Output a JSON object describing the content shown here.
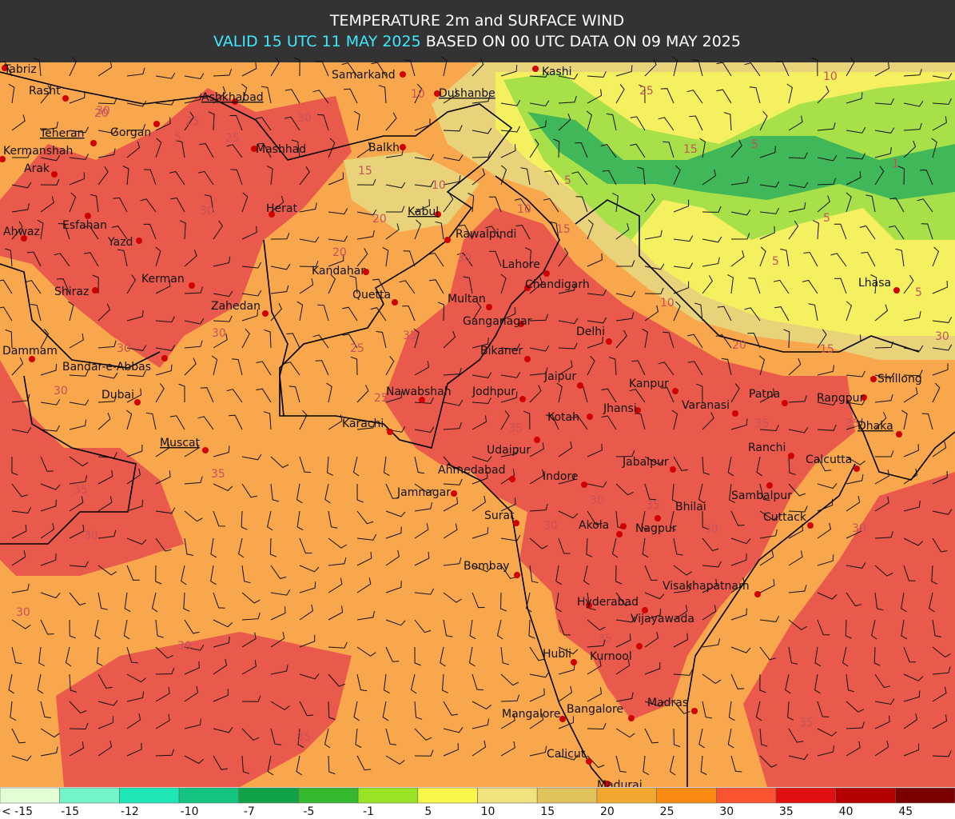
{
  "header": {
    "title": "TEMPERATURE 2m and SURFACE WIND",
    "valid": "VALID 15 UTC 11 MAY 2025",
    "based": "BASED ON 00 UTC DATA ON 09 MAY 2025"
  },
  "map": {
    "cities": [
      "Tabriz",
      "Rasht",
      "Teheran",
      "Gorgan",
      "Kermanshah",
      "Arak",
      "Ashkhabad",
      "Mashhad",
      "Samarkand",
      "Dushanbe",
      "Kashi",
      "Balkh",
      "Herat",
      "Kabul",
      "Rawalpindi",
      "Esfahan",
      "Yazd",
      "Ahwaz",
      "Kerman",
      "Shiraz",
      "Zahedan",
      "Kandahar",
      "Quetta",
      "Lahore",
      "Chandigarh",
      "Multan",
      "Ganganagar",
      "Delhi",
      "Lhasa",
      "Bikaner",
      "Dammam",
      "Bandar-e-Abbas",
      "Dubai",
      "Jaipur",
      "Kanpur",
      "Patna",
      "Shillong",
      "Rangpur",
      "Nawabshah",
      "Jodhpur",
      "Varanasi",
      "Jhansi",
      "Kotah",
      "Muscat",
      "Karachi",
      "Dhaka",
      "Udaipur",
      "Ranchi",
      "Calcutta",
      "Jabalpur",
      "Ahmedabad",
      "Indore",
      "Jamnagar",
      "Sambalpur",
      "Bhilai",
      "Cuttack",
      "Surat",
      "Akola",
      "Nagpur",
      "Bombay",
      "Visakhapatnam",
      "Hyderabad",
      "Vijayawada",
      "Hubli",
      "Kurnool",
      "Madras",
      "Mangalore",
      "Bangalore",
      "Calicut",
      "Madurai"
    ],
    "contour_labels": [
      30,
      20,
      25,
      30,
      25,
      15,
      10,
      10,
      25,
      5,
      10,
      15,
      5,
      1,
      5,
      5,
      25,
      20,
      15,
      5,
      10,
      15,
      20,
      5,
      30,
      30,
      35,
      35,
      35,
      35,
      30,
      35,
      30,
      35,
      25,
      35,
      30,
      30,
      30,
      35,
      35,
      35,
      30,
      30,
      30,
      30,
      30,
      20,
      30,
      10
    ]
  },
  "legend": {
    "colors": [
      "#e4ffd6",
      "#72f5c8",
      "#1ee6b4",
      "#12c47e",
      "#10a246",
      "#34b82e",
      "#98e424",
      "#f8f84a",
      "#f0e27c",
      "#e2c25a",
      "#f2a82e",
      "#fb8a12",
      "#fb5230",
      "#e01010",
      "#b40000",
      "#7a0000"
    ],
    "labels": [
      "< -15",
      "-15",
      "-12",
      "-10",
      "-7",
      "-5",
      "-1",
      "5",
      "10",
      "15",
      "20",
      "25",
      "30",
      "35",
      "40",
      "45"
    ]
  }
}
